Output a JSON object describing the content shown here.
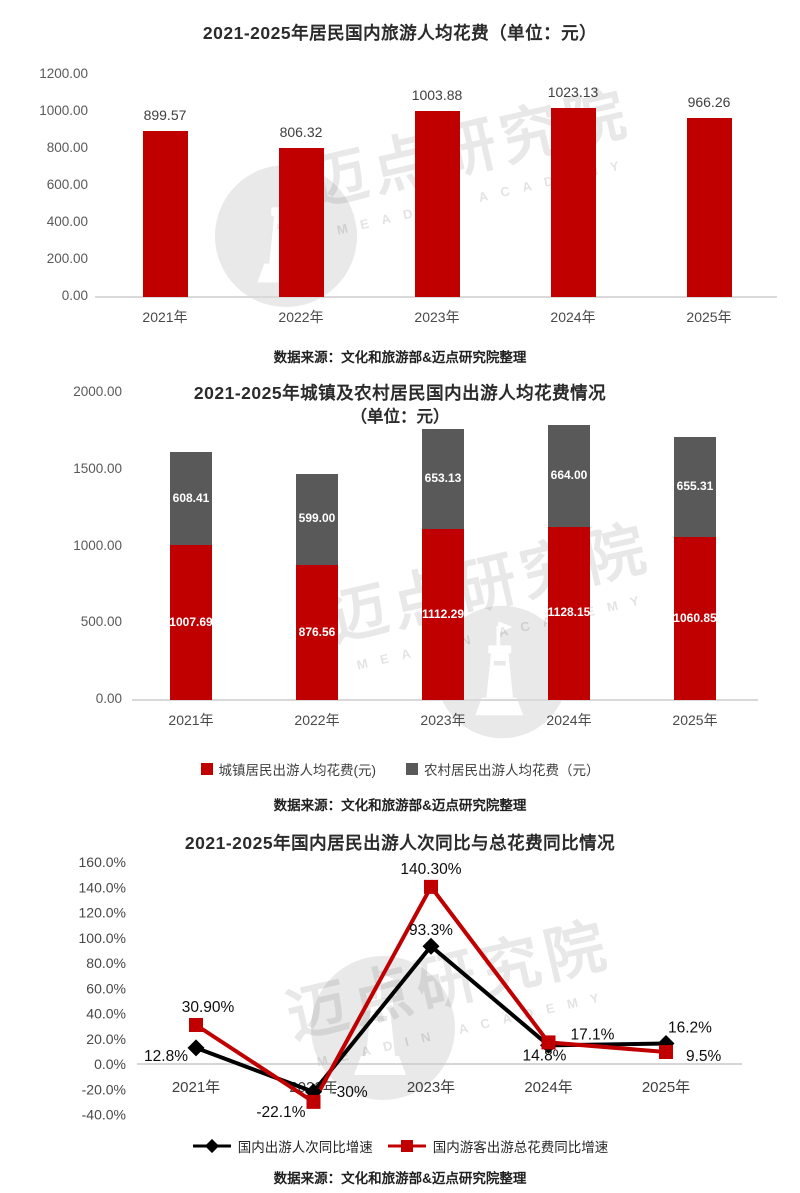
{
  "watermark": {
    "cn": "迈点研究院",
    "en": "MEADIN ACADEMY"
  },
  "source_note": "数据来源：文化和旅游部&迈点研究院整理",
  "chart_data": [
    {
      "type": "bar",
      "title": "2021-2025年居民国内旅游人均花费（单位：元）",
      "source": "数据来源：文化和旅游部&迈点研究院整理",
      "categories": [
        "2021年",
        "2022年",
        "2023年",
        "2024年",
        "2025年"
      ],
      "values": [
        899.57,
        806.32,
        1003.88,
        1023.13,
        966.26
      ],
      "value_labels": [
        "899.57",
        "806.32",
        "1003.88",
        "1023.13",
        "966.26"
      ],
      "bar_color": "#c00000",
      "ylim": [
        0,
        1200
      ],
      "yticks": [
        1200,
        1000,
        800,
        600,
        400,
        200,
        0
      ],
      "ytick_labels": [
        "1200.00",
        "1000.00",
        "800.00",
        "600.00",
        "400.00",
        "200.00",
        "0.00"
      ],
      "grid": false,
      "legend_position": "none"
    },
    {
      "type": "bar",
      "stacked": true,
      "title": "2021-2025年城镇及农村居民国内出游人均花费情况",
      "subtitle": "（单位：元）",
      "source": "数据来源：文化和旅游部&迈点研究院整理",
      "categories": [
        "2021年",
        "2022年",
        "2023年",
        "2024年",
        "2025年"
      ],
      "series": [
        {
          "name": "城镇居民出游人均花费(元)",
          "color": "#c00000",
          "values": [
            1007.69,
            876.56,
            1112.29,
            1128.15,
            1060.85
          ],
          "value_labels": [
            "1007.69",
            "876.56",
            "1112.29",
            "1128.15",
            "1060.85"
          ]
        },
        {
          "name": "农村居民出游人均花费（元）",
          "color": "#595959",
          "values": [
            608.41,
            599.0,
            653.13,
            664.0,
            655.31
          ],
          "value_labels": [
            "608.41",
            "599.00",
            "653.13",
            "664.00",
            "655.31"
          ]
        }
      ],
      "ylim": [
        0,
        2000
      ],
      "yticks": [
        2000,
        1500,
        1000,
        500,
        0
      ],
      "ytick_labels": [
        "2000.00",
        "1500.00",
        "1000.00",
        "500.00",
        "0.00"
      ],
      "grid": false,
      "legend_position": "bottom"
    },
    {
      "type": "line",
      "title": "2021-2025年国内居民出游人次同比与总花费同比情况",
      "source": "数据来源：文化和旅游部&迈点研究院整理",
      "categories": [
        "2021年",
        "2022年",
        "2023年",
        "2024年",
        "2025年"
      ],
      "series": [
        {
          "name": "国内出游人次同比增速",
          "color": "#000000",
          "marker": "diamond",
          "values": [
            12.8,
            -22.1,
            93.3,
            14.8,
            16.2
          ],
          "value_labels": [
            "12.8%",
            "-22.1%",
            "93.3%",
            "14.8%",
            "16.2%"
          ],
          "label_offsets": [
            {
              "dx": -8,
              "dy": 13,
              "anchor": "end"
            },
            {
              "dx": -8,
              "dy": 25,
              "anchor": "end"
            },
            {
              "dx": 0,
              "dy": -11,
              "anchor": "middle"
            },
            {
              "dx": -4,
              "dy": 15,
              "anchor": "middle"
            },
            {
              "dx": 2,
              "dy": -11,
              "anchor": "start"
            }
          ]
        },
        {
          "name": "国内游客出游总花费同比增速",
          "color": "#c00000",
          "marker": "square",
          "values": [
            30.9,
            -30.0,
            140.3,
            17.1,
            9.5
          ],
          "value_labels": [
            "30.90%",
            "-30%",
            "140.30%",
            "17.1%",
            "9.5%"
          ],
          "label_offsets": [
            {
              "dx": 12,
              "dy": -13,
              "anchor": "middle"
            },
            {
              "dx": 18,
              "dy": -5,
              "anchor": "start"
            },
            {
              "dx": 0,
              "dy": -13,
              "anchor": "middle"
            },
            {
              "dx": 22,
              "dy": -3,
              "anchor": "start"
            },
            {
              "dx": 20,
              "dy": 9,
              "anchor": "start"
            }
          ]
        }
      ],
      "ylim": [
        -40,
        160
      ],
      "yticks": [
        160,
        140,
        120,
        100,
        80,
        60,
        40,
        20,
        0,
        -20,
        -40
      ],
      "ytick_labels": [
        "160.0%",
        "140.0%",
        "120.0%",
        "100.0%",
        "80.0%",
        "60.0%",
        "40.0%",
        "20.0%",
        "0.0%",
        "-20.0%",
        "-40.0%"
      ],
      "grid": false,
      "legend_position": "bottom"
    }
  ]
}
